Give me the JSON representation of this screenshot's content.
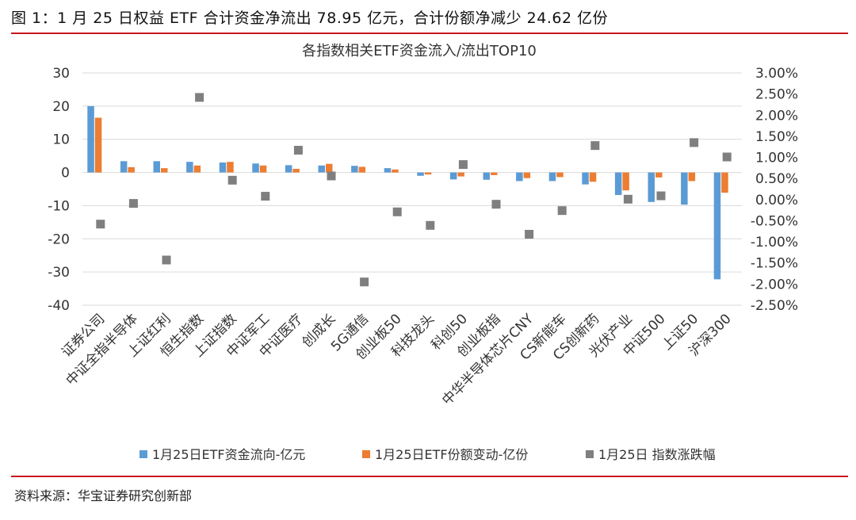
{
  "figure_title": "图 1：1 月 25 日权益 ETF 合计资金净流出 78.95 亿元，合计份额净减少 24.62 亿份",
  "source": "资料来源：华宝证券研究创新部",
  "colors": {
    "flow": "#5b9bd5",
    "share": "#ed7d31",
    "index": "#7f7f7f",
    "rule": "#c8161e",
    "grid": "#d9d9d9"
  },
  "chart_data": {
    "type": "bar",
    "title": "各指数相关ETF资金流入/流出TOP10",
    "categories": [
      "证券公司",
      "中证全指半导体",
      "上证红利",
      "恒生指数",
      "上证指数",
      "中证军工",
      "中证医疗",
      "创成长",
      "5G通信",
      "创业板50",
      "科技龙头",
      "科创50",
      "创业板指",
      "中华半导体芯片CNY",
      "CS新能车",
      "CS创新药",
      "光伏产业",
      "中证500",
      "上证50",
      "沪深300"
    ],
    "series": [
      {
        "name": "1月25日ETF资金流向-亿元",
        "axis": "left",
        "values": [
          20.0,
          3.4,
          3.4,
          3.2,
          3.0,
          2.7,
          2.2,
          2.1,
          2.0,
          1.3,
          -1.0,
          -2.1,
          -2.2,
          -2.6,
          -2.6,
          -3.6,
          -6.8,
          -8.9,
          -9.7,
          -32.2
        ]
      },
      {
        "name": "1月25日ETF份额变动-亿份",
        "axis": "left",
        "values": [
          16.5,
          1.6,
          1.3,
          2.1,
          3.2,
          2.1,
          1.1,
          2.6,
          1.7,
          0.9,
          -0.6,
          -1.2,
          -0.8,
          -1.7,
          -1.4,
          -2.8,
          -5.4,
          -1.5,
          -2.6,
          -6.1
        ]
      },
      {
        "name": "1月25日 指数涨跌幅",
        "axis": "right",
        "unit": "%",
        "values": [
          -0.58,
          -0.09,
          -1.43,
          2.42,
          0.46,
          0.08,
          1.17,
          0.56,
          -1.95,
          -0.29,
          -0.61,
          0.83,
          -0.11,
          -0.82,
          -0.26,
          1.28,
          0.01,
          0.09,
          1.35,
          1.01
        ]
      }
    ],
    "y_left": {
      "min": -40,
      "max": 30,
      "ticks": [
        "30",
        "20",
        "10",
        "0",
        "-10",
        "-20",
        "-30",
        "-40"
      ]
    },
    "y_right": {
      "min": -2.5,
      "max": 3.0,
      "ticks": [
        "3.00%",
        "2.50%",
        "2.00%",
        "1.50%",
        "1.00%",
        "0.50%",
        "0.00%",
        "-0.50%",
        "-1.00%",
        "-1.50%",
        "-2.00%",
        "-2.50%"
      ]
    },
    "grid": true,
    "legend_position": "bottom"
  }
}
